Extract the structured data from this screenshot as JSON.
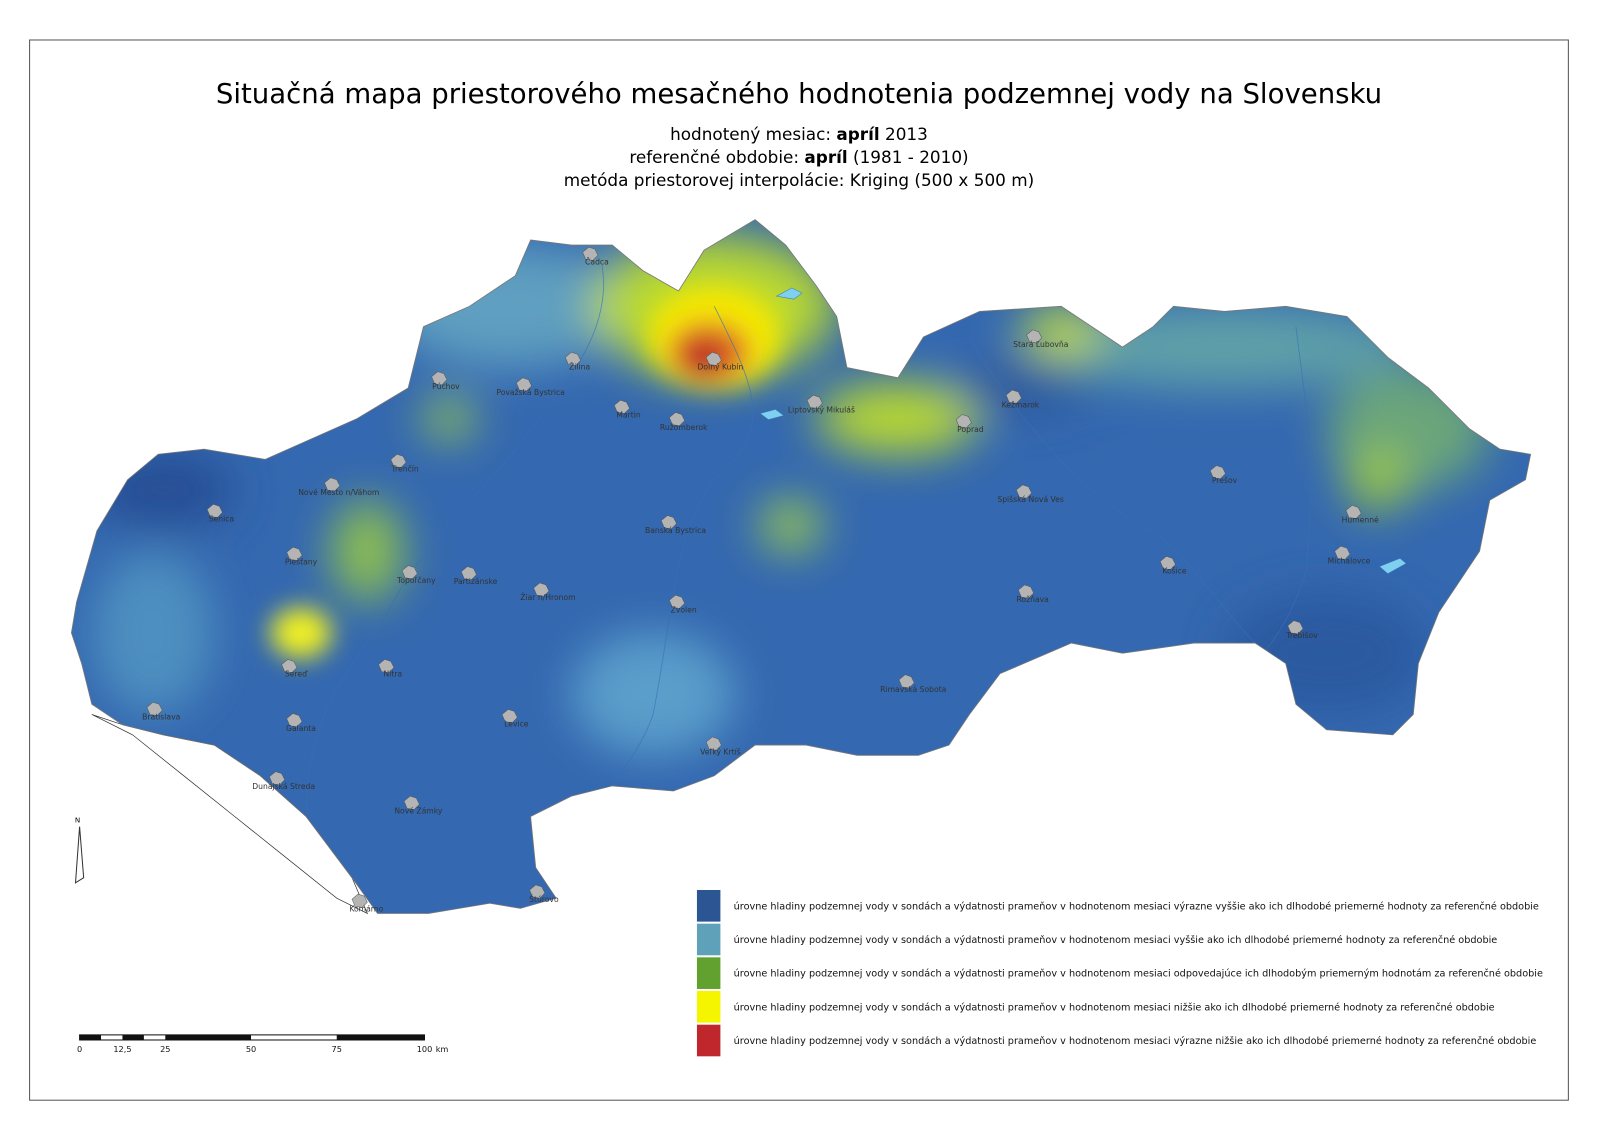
{
  "header": {
    "title": "Situačná mapa priestorového mesačného hodnotenia podzemnej vody na Slovensku",
    "lines": [
      {
        "label": "hodnotený mesiac:",
        "bold": "apríl",
        "rest": "2013"
      },
      {
        "label": "referenčné obdobie:",
        "bold": "apríl",
        "rest": "(1981 - 2010)"
      },
      {
        "label": "metóda priestorovej interpolácie: Kriging (500 x 500 m)"
      }
    ]
  },
  "cities": [
    "Čadca",
    "Žilina",
    "Púchov",
    "Považská Bystrica",
    "Martin",
    "Ružomberok",
    "Dolný Kubín",
    "Liptovský Mikuláš",
    "Stará Ľubovňa",
    "Kežmarok",
    "Poprad",
    "Prešov",
    "Spišská Nová Ves",
    "Humenné",
    "Michalovce",
    "Košice",
    "Rožňava",
    "Trebišov",
    "Trenčín",
    "Nové Mesto n/Váhom",
    "Senica",
    "Banská Bystrica",
    "Piešťany",
    "Topoľčany",
    "Partizánske",
    "Žiar n/Hronom",
    "Zvolen",
    "Sereď",
    "Nitra",
    "Rimavská Sobota",
    "Bratislava",
    "Galanta",
    "Levice",
    "Veľký Krtíš",
    "Dunajská Streda",
    "Nové Zámky",
    "Štúrovo",
    "Komárno"
  ],
  "legend": [
    {
      "color": "#2b5593",
      "label": "úrovne hladiny podzemnej vody v sondách a výdatnosti prameňov v hodnotenom mesiaci výrazne vyššie ako ich dlhodobé priemerné hodnoty za referenčné obdobie"
    },
    {
      "color": "#5ea1b8",
      "label": "úrovne hladiny podzemnej vody v sondách a výdatnosti prameňov v hodnotenom mesiaci vyššie ako ich dlhodobé priemerné hodnoty za referenčné obdobie"
    },
    {
      "color": "#62a12f",
      "label": "úrovne hladiny podzemnej vody v sondách a výdatnosti prameňov v hodnotenom mesiaci odpovedajúce ich dlhodobým priemerným hodnotám za referenčné obdobie"
    },
    {
      "color": "#f5f500",
      "label": "úrovne hladiny podzemnej vody v sondách a výdatnosti prameňov v hodnotenom mesiaci nižšie ako ich dlhodobé priemerné hodnoty za referenčné obdobie"
    },
    {
      "color": "#c0272d",
      "label": "úrovne hladiny podzemnej vody v sondách a výdatnosti prameňov v hodnotenom mesiaci výrazne nižšie ako ich dlhodobé priemerné hodnoty za referenčné obdobie"
    }
  ],
  "scale_bar": {
    "ticks": [
      "0",
      "12,5",
      "25",
      "50",
      "75",
      "100"
    ],
    "unit": "km"
  },
  "north": "N"
}
